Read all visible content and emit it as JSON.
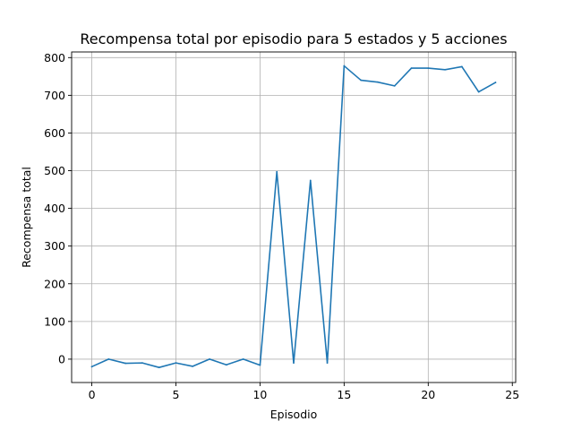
{
  "chart_data": {
    "type": "line",
    "title": "Recompensa total por episodio para 5 estados y 5 acciones",
    "xlabel": "Episodio",
    "ylabel": "Recompensa total",
    "xlim": [
      -1.2,
      25.2
    ],
    "ylim": [
      -62,
      815
    ],
    "xticks": [
      0,
      5,
      10,
      15,
      20,
      25
    ],
    "yticks": [
      0,
      100,
      200,
      300,
      400,
      500,
      600,
      700,
      800
    ],
    "grid": true,
    "legend": "none",
    "series": [
      {
        "color": "#1f77b4",
        "x": [
          0,
          1,
          2,
          3,
          4,
          5,
          6,
          7,
          8,
          9,
          10,
          11,
          12,
          13,
          14,
          15,
          16,
          17,
          18,
          19,
          20,
          21,
          22,
          23,
          24
        ],
        "values": [
          -20,
          0,
          -11,
          -10,
          -22,
          -10,
          -19,
          0,
          -15,
          0,
          -16,
          497,
          -10,
          474,
          -10,
          778,
          740,
          735,
          725,
          772,
          772,
          768,
          776,
          709,
          734
        ]
      }
    ]
  }
}
